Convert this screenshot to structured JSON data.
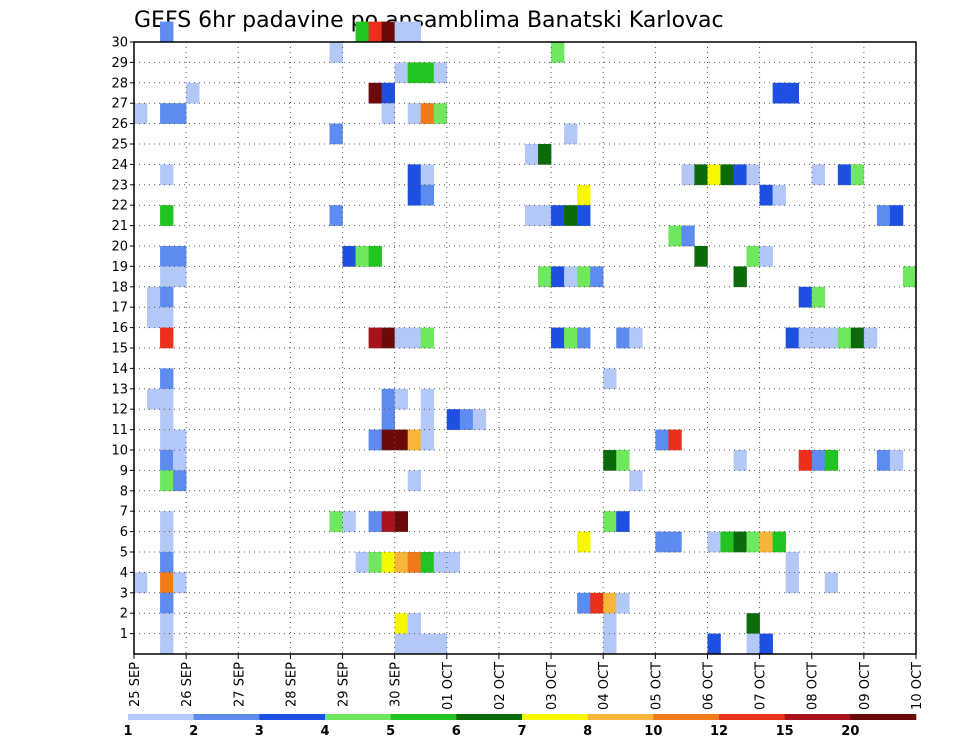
{
  "chart_data": {
    "type": "heatmap",
    "title": "GEFS 6hr padavine po ansamblima Banatski Karlovac",
    "x_ticks": [
      "25 SEP",
      "26 SEP",
      "27 SEP",
      "28 SEP",
      "29 SEP",
      "30 SEP",
      "01 OCT",
      "02 OCT",
      "03 OCT",
      "04 OCT",
      "05 OCT",
      "06 OCT",
      "07 OCT",
      "08 OCT",
      "09 OCT",
      "10 OCT"
    ],
    "y_ticks": [
      1,
      2,
      3,
      4,
      5,
      6,
      7,
      8,
      9,
      10,
      11,
      12,
      13,
      14,
      15,
      16,
      17,
      18,
      19,
      20,
      21,
      22,
      23,
      24,
      25,
      26,
      27,
      28,
      29,
      30
    ],
    "xlim": [
      0,
      60
    ],
    "ylim": [
      0,
      30
    ],
    "grid": true,
    "colorbar": {
      "labels": [
        "1",
        "2",
        "3",
        "4",
        "5",
        "6",
        "7",
        "8",
        "10",
        "12",
        "15",
        "20"
      ],
      "colors": [
        "#b3c8f7",
        "#5e8bef",
        "#1d4fe0",
        "#6fe85f",
        "#22c422",
        "#0b6b0b",
        "#f7f700",
        "#f7b53a",
        "#f07a1a",
        "#e8301a",
        "#a8121a",
        "#6b0a0a"
      ]
    },
    "note_levels": "cell value = color level index 0..11 matching colorbar.colors",
    "cells": [
      [
        30,
        2,
        1
      ],
      [
        30,
        17,
        4
      ],
      [
        30,
        18,
        9
      ],
      [
        30,
        19,
        11
      ],
      [
        30,
        20,
        0
      ],
      [
        30,
        21,
        0
      ],
      [
        29,
        15,
        0
      ],
      [
        29,
        32,
        3
      ],
      [
        28,
        20,
        0
      ],
      [
        28,
        21,
        4
      ],
      [
        28,
        22,
        4
      ],
      [
        28,
        23,
        0
      ],
      [
        27,
        4,
        0
      ],
      [
        27,
        18,
        11
      ],
      [
        27,
        19,
        2
      ],
      [
        27,
        49,
        2
      ],
      [
        27,
        50,
        2
      ],
      [
        26,
        0,
        0
      ],
      [
        26,
        2,
        1
      ],
      [
        26,
        3,
        1
      ],
      [
        26,
        19,
        0
      ],
      [
        26,
        21,
        0
      ],
      [
        26,
        22,
        8
      ],
      [
        26,
        23,
        3
      ],
      [
        25,
        15,
        1
      ],
      [
        25,
        33,
        0
      ],
      [
        24,
        30,
        0
      ],
      [
        24,
        31,
        5
      ],
      [
        23,
        2,
        0
      ],
      [
        23,
        21,
        2
      ],
      [
        23,
        22,
        0
      ],
      [
        23,
        42,
        0
      ],
      [
        23,
        43,
        5
      ],
      [
        23,
        44,
        6
      ],
      [
        23,
        45,
        5
      ],
      [
        23,
        46,
        2
      ],
      [
        23,
        47,
        0
      ],
      [
        23,
        52,
        0
      ],
      [
        23,
        54,
        2
      ],
      [
        23,
        55,
        3
      ],
      [
        22,
        21,
        2
      ],
      [
        22,
        22,
        1
      ],
      [
        22,
        34,
        6
      ],
      [
        22,
        48,
        2
      ],
      [
        22,
        49,
        0
      ],
      [
        21,
        2,
        4
      ],
      [
        21,
        15,
        1
      ],
      [
        21,
        30,
        0
      ],
      [
        21,
        31,
        0
      ],
      [
        21,
        32,
        2
      ],
      [
        21,
        33,
        5
      ],
      [
        21,
        34,
        2
      ],
      [
        21,
        57,
        1
      ],
      [
        21,
        58,
        2
      ],
      [
        20,
        41,
        3
      ],
      [
        20,
        42,
        1
      ],
      [
        19,
        2,
        1
      ],
      [
        19,
        3,
        1
      ],
      [
        19,
        16,
        2
      ],
      [
        19,
        17,
        3
      ],
      [
        19,
        18,
        4
      ],
      [
        19,
        43,
        5
      ],
      [
        19,
        47,
        3
      ],
      [
        19,
        48,
        0
      ],
      [
        18,
        2,
        0
      ],
      [
        18,
        3,
        0
      ],
      [
        18,
        31,
        3
      ],
      [
        18,
        32,
        2
      ],
      [
        18,
        33,
        0
      ],
      [
        18,
        34,
        3
      ],
      [
        18,
        35,
        1
      ],
      [
        18,
        46,
        5
      ],
      [
        18,
        59,
        3
      ],
      [
        17,
        1,
        0
      ],
      [
        17,
        2,
        1
      ],
      [
        17,
        51,
        2
      ],
      [
        17,
        52,
        3
      ],
      [
        16,
        1,
        0
      ],
      [
        16,
        2,
        0
      ],
      [
        15,
        2,
        9
      ],
      [
        15,
        18,
        10
      ],
      [
        15,
        19,
        11
      ],
      [
        15,
        20,
        0
      ],
      [
        15,
        21,
        0
      ],
      [
        15,
        22,
        3
      ],
      [
        15,
        32,
        2
      ],
      [
        15,
        33,
        3
      ],
      [
        15,
        34,
        1
      ],
      [
        15,
        37,
        1
      ],
      [
        15,
        38,
        0
      ],
      [
        15,
        50,
        2
      ],
      [
        15,
        51,
        0
      ],
      [
        15,
        52,
        0
      ],
      [
        15,
        53,
        0
      ],
      [
        15,
        54,
        3
      ],
      [
        15,
        55,
        5
      ],
      [
        15,
        56,
        0
      ],
      [
        13,
        2,
        1
      ],
      [
        13,
        36,
        0
      ],
      [
        12,
        1,
        0
      ],
      [
        12,
        2,
        0
      ],
      [
        12,
        19,
        1
      ],
      [
        12,
        20,
        0
      ],
      [
        12,
        22,
        0
      ],
      [
        11,
        2,
        0
      ],
      [
        11,
        19,
        1
      ],
      [
        11,
        22,
        0
      ],
      [
        11,
        24,
        2
      ],
      [
        11,
        25,
        1
      ],
      [
        11,
        26,
        0
      ],
      [
        10,
        2,
        0
      ],
      [
        10,
        3,
        0
      ],
      [
        10,
        18,
        1
      ],
      [
        10,
        19,
        11
      ],
      [
        10,
        20,
        11
      ],
      [
        10,
        21,
        7
      ],
      [
        10,
        22,
        0
      ],
      [
        10,
        40,
        1
      ],
      [
        10,
        41,
        9
      ],
      [
        9,
        2,
        1
      ],
      [
        9,
        3,
        0
      ],
      [
        9,
        36,
        5
      ],
      [
        9,
        37,
        3
      ],
      [
        9,
        46,
        0
      ],
      [
        9,
        51,
        9
      ],
      [
        9,
        52,
        1
      ],
      [
        9,
        53,
        4
      ],
      [
        9,
        57,
        1
      ],
      [
        9,
        58,
        0
      ],
      [
        8,
        2,
        3
      ],
      [
        8,
        3,
        1
      ],
      [
        8,
        21,
        0
      ],
      [
        8,
        38,
        0
      ],
      [
        6,
        2,
        0
      ],
      [
        6,
        15,
        3
      ],
      [
        6,
        16,
        0
      ],
      [
        6,
        18,
        1
      ],
      [
        6,
        19,
        10
      ],
      [
        6,
        20,
        11
      ],
      [
        6,
        36,
        3
      ],
      [
        6,
        37,
        2
      ],
      [
        5,
        2,
        0
      ],
      [
        5,
        34,
        6
      ],
      [
        5,
        40,
        1
      ],
      [
        5,
        41,
        1
      ],
      [
        5,
        44,
        0
      ],
      [
        5,
        45,
        4
      ],
      [
        5,
        46,
        5
      ],
      [
        5,
        47,
        3
      ],
      [
        5,
        48,
        7
      ],
      [
        5,
        49,
        4
      ],
      [
        4,
        2,
        1
      ],
      [
        4,
        17,
        0
      ],
      [
        4,
        18,
        3
      ],
      [
        4,
        19,
        6
      ],
      [
        4,
        20,
        7
      ],
      [
        4,
        21,
        8
      ],
      [
        4,
        22,
        4
      ],
      [
        4,
        23,
        0
      ],
      [
        4,
        24,
        0
      ],
      [
        4,
        50,
        0
      ],
      [
        3,
        0,
        0
      ],
      [
        3,
        2,
        8
      ],
      [
        3,
        3,
        0
      ],
      [
        3,
        50,
        0
      ],
      [
        3,
        53,
        0
      ],
      [
        2,
        2,
        1
      ],
      [
        2,
        34,
        1
      ],
      [
        2,
        35,
        9
      ],
      [
        2,
        36,
        7
      ],
      [
        2,
        37,
        0
      ],
      [
        1,
        2,
        0
      ],
      [
        1,
        20,
        6
      ],
      [
        1,
        21,
        0
      ],
      [
        1,
        36,
        0
      ],
      [
        1,
        47,
        5
      ],
      [
        0,
        2,
        0
      ],
      [
        0,
        20,
        0
      ],
      [
        0,
        21,
        0
      ],
      [
        0,
        22,
        0
      ],
      [
        0,
        23,
        0
      ],
      [
        0,
        36,
        0
      ],
      [
        0,
        44,
        2
      ],
      [
        0,
        47,
        0
      ],
      [
        0,
        48,
        2
      ]
    ]
  }
}
